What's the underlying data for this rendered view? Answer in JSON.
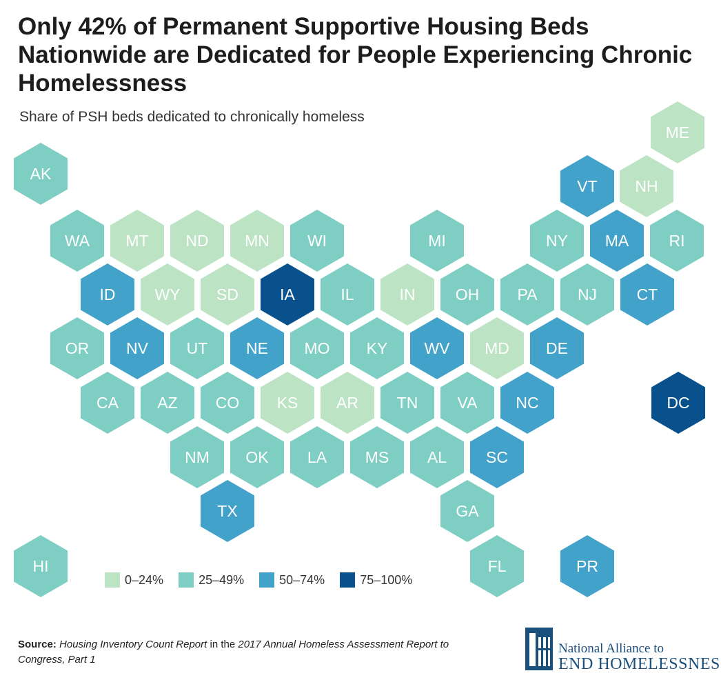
{
  "title": "Only 42% of Permanent Supportive Housing Beds Nationwide are Dedicated for People Experiencing Chronic Homelessness",
  "subtitle": "Share of PSH beds dedicated to chronically homeless",
  "colors": {
    "0-24": "#bce4c4",
    "25-49": "#7ecec4",
    "50-74": "#43a2ca",
    "75-100": "#08518c"
  },
  "legend": [
    {
      "key": "0-24",
      "label": "0–24%"
    },
    {
      "key": "25-49",
      "label": "25–49%"
    },
    {
      "key": "50-74",
      "label": "50–74%"
    },
    {
      "key": "75-100",
      "label": "75–100%"
    }
  ],
  "chart_data": {
    "type": "heatmap",
    "states": [
      {
        "abbr": "ME",
        "bin": "0-24"
      },
      {
        "abbr": "AK",
        "bin": "25-49"
      },
      {
        "abbr": "VT",
        "bin": "50-74"
      },
      {
        "abbr": "NH",
        "bin": "0-24"
      },
      {
        "abbr": "WA",
        "bin": "25-49"
      },
      {
        "abbr": "MT",
        "bin": "0-24"
      },
      {
        "abbr": "ND",
        "bin": "0-24"
      },
      {
        "abbr": "MN",
        "bin": "0-24"
      },
      {
        "abbr": "WI",
        "bin": "25-49"
      },
      {
        "abbr": "MI",
        "bin": "25-49"
      },
      {
        "abbr": "NY",
        "bin": "25-49"
      },
      {
        "abbr": "MA",
        "bin": "50-74"
      },
      {
        "abbr": "RI",
        "bin": "25-49"
      },
      {
        "abbr": "ID",
        "bin": "50-74"
      },
      {
        "abbr": "WY",
        "bin": "0-24"
      },
      {
        "abbr": "SD",
        "bin": "0-24"
      },
      {
        "abbr": "IA",
        "bin": "75-100"
      },
      {
        "abbr": "IL",
        "bin": "25-49"
      },
      {
        "abbr": "IN",
        "bin": "0-24"
      },
      {
        "abbr": "OH",
        "bin": "25-49"
      },
      {
        "abbr": "PA",
        "bin": "25-49"
      },
      {
        "abbr": "NJ",
        "bin": "25-49"
      },
      {
        "abbr": "CT",
        "bin": "50-74"
      },
      {
        "abbr": "OR",
        "bin": "25-49"
      },
      {
        "abbr": "NV",
        "bin": "50-74"
      },
      {
        "abbr": "UT",
        "bin": "25-49"
      },
      {
        "abbr": "NE",
        "bin": "50-74"
      },
      {
        "abbr": "MO",
        "bin": "25-49"
      },
      {
        "abbr": "KY",
        "bin": "25-49"
      },
      {
        "abbr": "WV",
        "bin": "50-74"
      },
      {
        "abbr": "MD",
        "bin": "0-24"
      },
      {
        "abbr": "DE",
        "bin": "50-74"
      },
      {
        "abbr": "CA",
        "bin": "25-49"
      },
      {
        "abbr": "AZ",
        "bin": "25-49"
      },
      {
        "abbr": "CO",
        "bin": "25-49"
      },
      {
        "abbr": "KS",
        "bin": "0-24"
      },
      {
        "abbr": "AR",
        "bin": "0-24"
      },
      {
        "abbr": "TN",
        "bin": "25-49"
      },
      {
        "abbr": "VA",
        "bin": "25-49"
      },
      {
        "abbr": "NC",
        "bin": "50-74"
      },
      {
        "abbr": "DC",
        "bin": "75-100"
      },
      {
        "abbr": "NM",
        "bin": "25-49"
      },
      {
        "abbr": "OK",
        "bin": "25-49"
      },
      {
        "abbr": "LA",
        "bin": "25-49"
      },
      {
        "abbr": "MS",
        "bin": "25-49"
      },
      {
        "abbr": "AL",
        "bin": "25-49"
      },
      {
        "abbr": "SC",
        "bin": "50-74"
      },
      {
        "abbr": "TX",
        "bin": "50-74"
      },
      {
        "abbr": "GA",
        "bin": "25-49"
      },
      {
        "abbr": "HI",
        "bin": "25-49"
      },
      {
        "abbr": "FL",
        "bin": "25-49"
      },
      {
        "abbr": "PR",
        "bin": "50-74"
      }
    ]
  },
  "source": {
    "label": "Source:",
    "part1": "Housing Inventory Count Report",
    "part2": " in the ",
    "part3": "2017 Annual Homeless Assessment Report to Congress, Part 1"
  },
  "logo": {
    "line1": "National Alliance to",
    "line2": "END HOMELESSNESS"
  }
}
